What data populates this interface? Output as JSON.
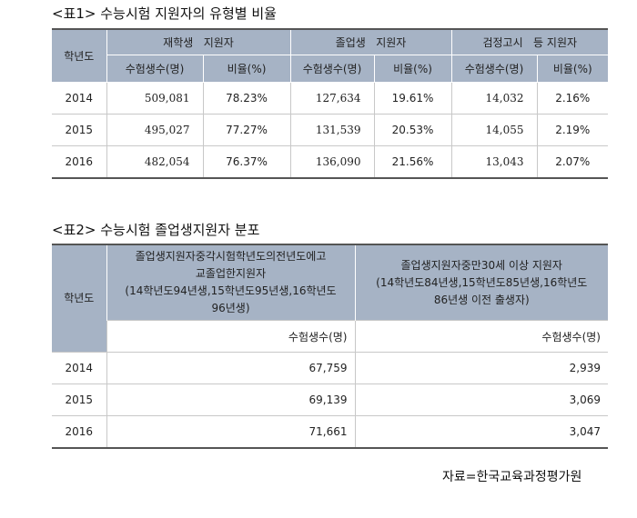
{
  "table1": {
    "caption": "<표1> 수능시험 지원자의 유형별 비율",
    "year_header": "학년도",
    "groups": [
      "재학생   지원자",
      "졸업생   지원자",
      "검정고시   등 지원자"
    ],
    "sub_headers": [
      "수험생수(명)",
      "비율(%)"
    ],
    "rows": [
      {
        "year": "2014",
        "cells": [
          "509,081",
          "78.23%",
          "127,634",
          "19.61%",
          "14,032",
          "2.16%"
        ]
      },
      {
        "year": "2015",
        "cells": [
          "495,027",
          "77.27%",
          "131,539",
          "20.53%",
          "14,055",
          "2.19%"
        ]
      },
      {
        "year": "2016",
        "cells": [
          "482,054",
          "76.37%",
          "136,090",
          "21.56%",
          "13,043",
          "2.07%"
        ]
      }
    ]
  },
  "table2": {
    "caption": "<표2> 수능시험 졸업생지원자 분포",
    "year_header": "학년도",
    "col1_lines": [
      "졸업생지원자중각시험학년도의전년도에고",
      "교졸업한지원자",
      "(14학년도94년생,15학년도95년생,16학년도",
      "96년생)"
    ],
    "col2_lines": [
      "졸업생지원자중만30세 이상 지원자",
      "(14학년도84년생,15학년도85년생,16학년도",
      "86년생 이전 출생자)"
    ],
    "unit": "수험생수(명)",
    "rows": [
      {
        "year": "2014",
        "a": "67,759",
        "b": "2,939"
      },
      {
        "year": "2015",
        "a": "69,139",
        "b": "3,069"
      },
      {
        "year": "2016",
        "a": "71,661",
        "b": "3,047"
      }
    ]
  },
  "source": "자료=한국교육과정평가원"
}
